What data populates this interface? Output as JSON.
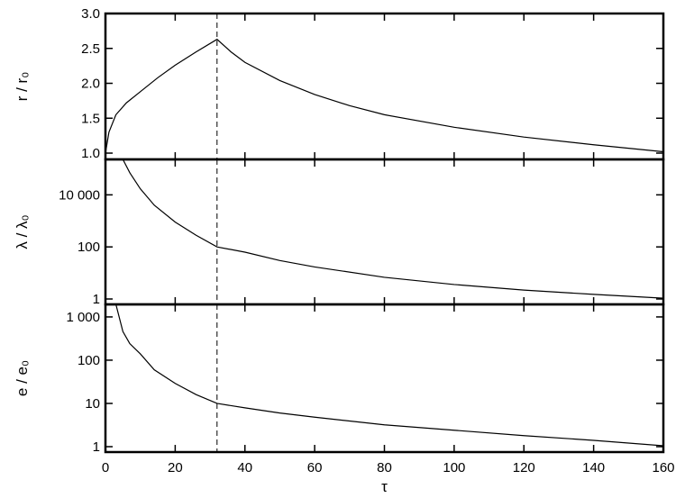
{
  "chart_data": [
    {
      "type": "line",
      "ylabel": "r / r₀",
      "scale": "linear",
      "x": [
        0,
        1,
        3,
        6,
        10,
        15,
        20,
        26,
        32,
        36,
        40,
        50,
        60,
        70,
        80,
        100,
        120,
        140,
        160
      ],
      "values": [
        1.0,
        1.3,
        1.55,
        1.72,
        1.88,
        2.08,
        2.26,
        2.45,
        2.63,
        2.45,
        2.3,
        2.04,
        1.84,
        1.68,
        1.55,
        1.37,
        1.23,
        1.12,
        1.02
      ],
      "color": "#000000",
      "xlim": [
        0,
        160
      ],
      "xticks": [
        0,
        20,
        40,
        60,
        80,
        100,
        120,
        140,
        160
      ],
      "ylim": [
        0.91,
        3.0
      ],
      "yticks": [
        {
          "value": 1,
          "label": "1.0"
        },
        1.5,
        {
          "value": 2,
          "label": "2.0"
        },
        2.5,
        {
          "value": 3,
          "label": "3.0"
        }
      ],
      "vline": 32
    },
    {
      "type": "line",
      "ylabel": "λ / λ₀",
      "scale": "log",
      "x": [
        5,
        7,
        10,
        14,
        20,
        26,
        32,
        40,
        50,
        60,
        80,
        100,
        120,
        140,
        160
      ],
      "values": [
        230000,
        70000,
        17000,
        4000,
        900,
        280,
        100,
        63,
        30,
        17,
        6.8,
        3.6,
        2.2,
        1.5,
        1.07
      ],
      "color": "#000000",
      "xlim": [
        0,
        160
      ],
      "xticks": [
        0,
        20,
        40,
        60,
        80,
        100,
        120,
        140,
        160
      ],
      "ylim": [
        0.62,
        230000
      ],
      "yticks": [
        1,
        100,
        {
          "value": 10000,
          "label": "10 000"
        }
      ],
      "vline": 32
    },
    {
      "type": "line",
      "ylabel": "e / e₀",
      "scale": "log",
      "xlabel": "τ",
      "x": [
        3,
        5,
        7,
        10,
        14,
        20,
        26,
        32,
        40,
        50,
        60,
        80,
        100,
        120,
        140,
        160
      ],
      "values": [
        1950,
        460,
        240,
        140,
        60,
        29,
        16,
        10,
        7.9,
        6.0,
        4.8,
        3.2,
        2.4,
        1.8,
        1.4,
        1.05
      ],
      "color": "#000000",
      "xlim": [
        0,
        160
      ],
      "xticks": [
        0,
        20,
        40,
        60,
        80,
        100,
        120,
        140,
        160
      ],
      "ylim": [
        0.75,
        1950
      ],
      "yticks": [
        1,
        10,
        100,
        {
          "value": 1000,
          "label": "1 000"
        }
      ],
      "vline": 32
    }
  ]
}
